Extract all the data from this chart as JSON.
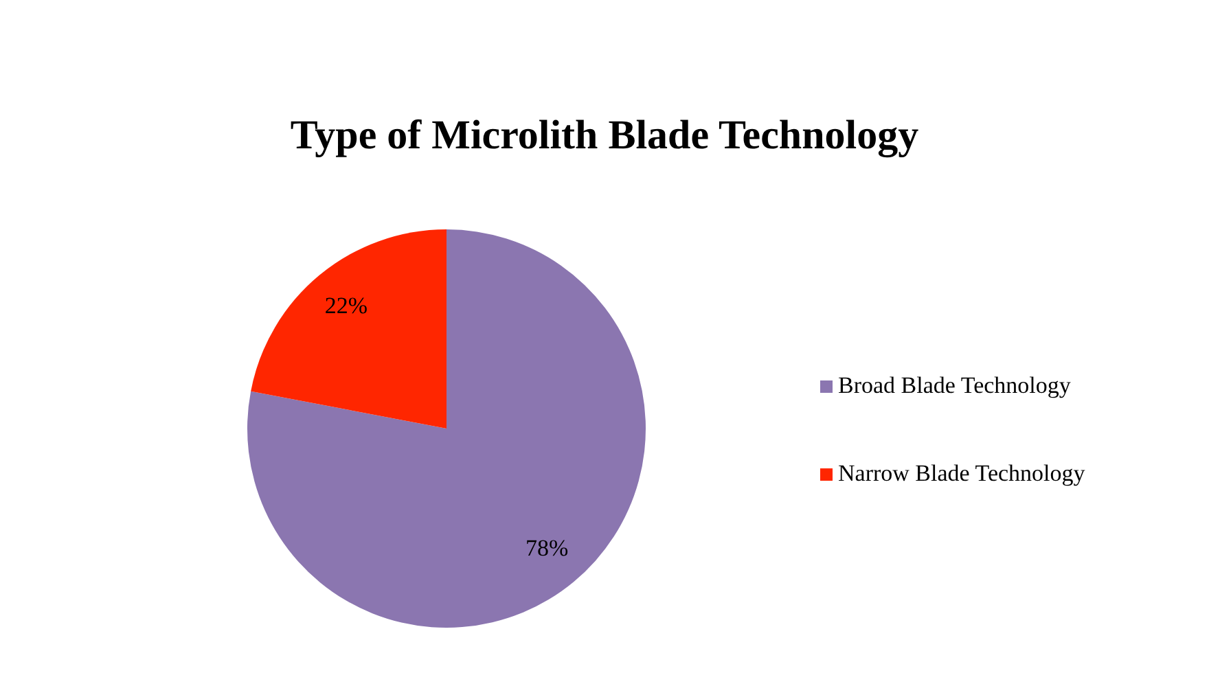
{
  "chart_data": {
    "type": "pie",
    "title": "Type of Microlith Blade Technology",
    "categories": [
      "Broad Blade Technology",
      "Narrow Blade Technology"
    ],
    "values": [
      78,
      22
    ],
    "colors": [
      "#8b76b0",
      "#ff2600"
    ],
    "value_labels": [
      "78%",
      "22%"
    ],
    "legend": "right"
  }
}
